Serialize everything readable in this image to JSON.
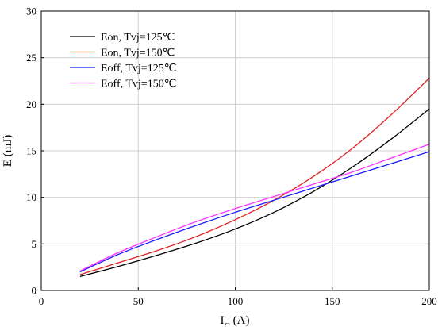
{
  "chart_data": {
    "type": "line",
    "title": "",
    "xlabel": {
      "main": "I",
      "sub": "C",
      "unit": " (A)"
    },
    "ylabel": "E (mJ)",
    "xlim": [
      0,
      200
    ],
    "ylim": [
      0,
      30
    ],
    "xticks": [
      0,
      50,
      100,
      150,
      200
    ],
    "yticks": [
      0,
      5,
      10,
      15,
      20,
      25,
      30
    ],
    "grid": true,
    "legend_position": "top-left",
    "series": [
      {
        "name": "Eon, Tvj=125℃",
        "color": "#000000",
        "x": [
          20,
          40,
          60,
          80,
          100,
          120,
          140,
          160,
          180,
          200
        ],
        "y": [
          1.5,
          2.6,
          3.8,
          5.1,
          6.6,
          8.4,
          10.6,
          13.2,
          16.2,
          19.5
        ]
      },
      {
        "name": "Eon, Tvj=150℃",
        "color": "#e02020",
        "x": [
          20,
          40,
          60,
          80,
          100,
          120,
          140,
          160,
          180,
          200
        ],
        "y": [
          1.7,
          3.0,
          4.3,
          5.8,
          7.6,
          9.7,
          12.2,
          15.2,
          18.8,
          22.8
        ]
      },
      {
        "name": "Eoff, Tvj=125℃",
        "color": "#1a1aff",
        "x": [
          20,
          40,
          60,
          80,
          100,
          120,
          140,
          160,
          180,
          200
        ],
        "y": [
          2.0,
          3.9,
          5.5,
          7.0,
          8.4,
          9.7,
          11.0,
          12.3,
          13.6,
          14.9
        ]
      },
      {
        "name": "Eoff, Tvj=150℃",
        "color": "#ff33ff",
        "x": [
          20,
          40,
          60,
          80,
          100,
          120,
          140,
          160,
          180,
          200
        ],
        "y": [
          2.1,
          4.1,
          5.8,
          7.4,
          8.8,
          10.1,
          11.4,
          12.7,
          14.2,
          15.7
        ]
      }
    ]
  }
}
